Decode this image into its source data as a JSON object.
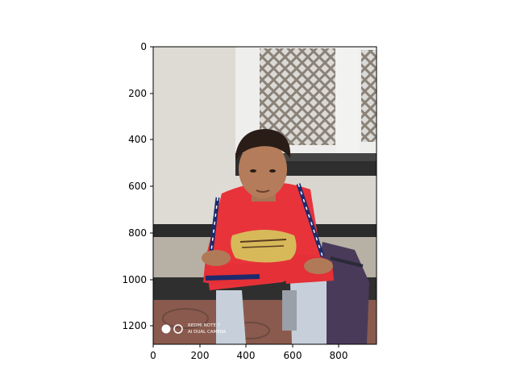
{
  "figure": {
    "x_ticks": [
      "0",
      "200",
      "400",
      "600",
      "800"
    ],
    "y_ticks": [
      "0",
      "200",
      "400",
      "600",
      "800",
      "1000",
      "1200"
    ],
    "image": {
      "watermark_line1": "REDMI NOTE 7",
      "watermark_line2": "AI DUAL CAMERA",
      "scene": "young man in red long-sleeve shirt sitting on a step holding a paper plate",
      "colors": {
        "wall": "#d9d6d0",
        "shirt": "#e8333a",
        "jeans": "#c7d0da",
        "floor": "#8a5a4e",
        "backpack": "#4a3a5a",
        "plate": "#d8b95a"
      }
    }
  }
}
